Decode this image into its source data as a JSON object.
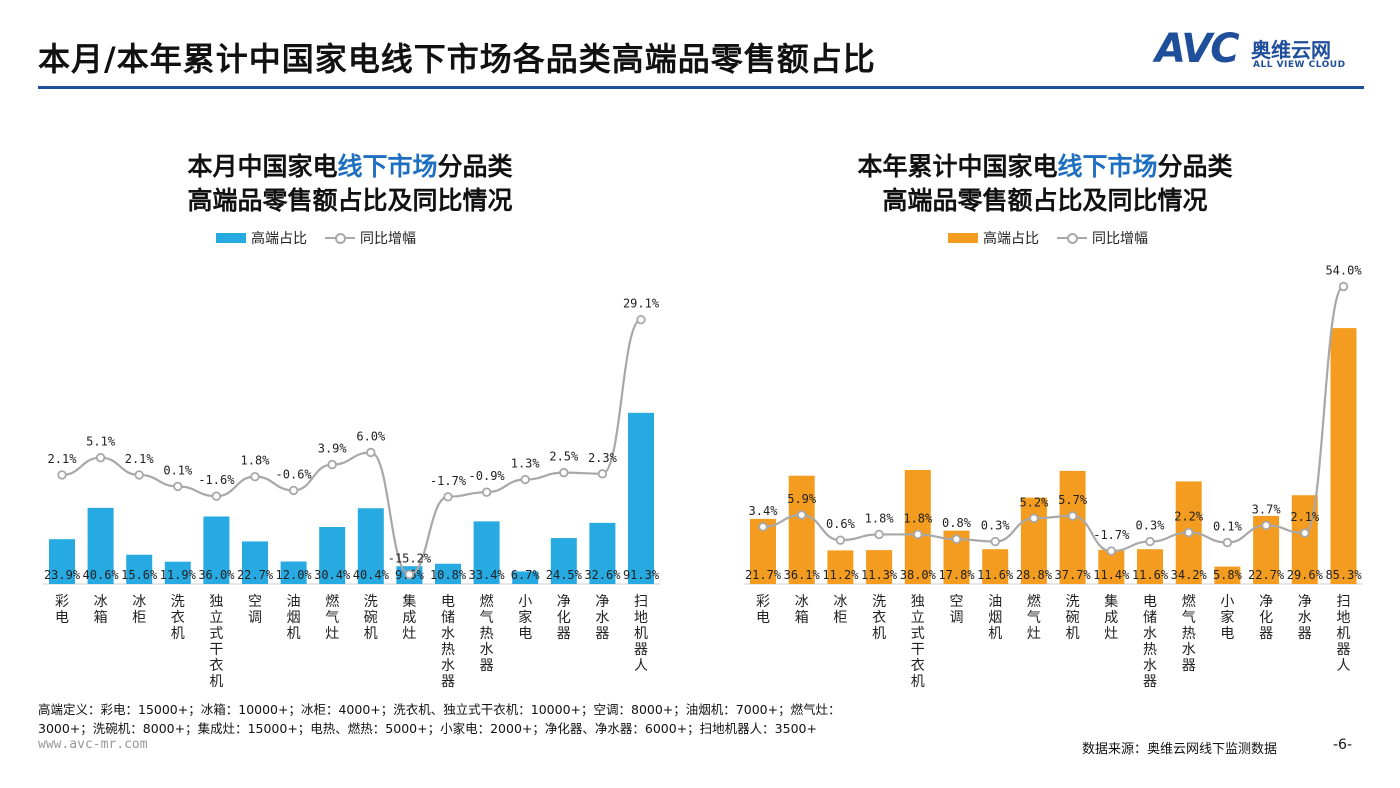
{
  "header": {
    "title": "本月/本年累计中国家电线下市场各品类高端品零售额占比",
    "logo_word": "AVC",
    "logo_cn": "奥维云网",
    "logo_en": "ALL VIEW CLOUD"
  },
  "colors": {
    "accent": "#1f4e9a",
    "bar_left": "#27aae1",
    "bar_right": "#f39c1f",
    "line": "#a8a8a8"
  },
  "chart_data": [
    {
      "type": "bar",
      "title_line1_pre": "本月中国家电",
      "title_line1_hl": "线下市场",
      "title_line1_post": "分品类",
      "title_line2": "高端品零售额占比及同比情况",
      "legend_bar": "高端占比",
      "legend_line": "同比增幅",
      "categories": [
        "彩电",
        "冰箱",
        "冰柜",
        "洗衣机",
        "独立式干衣机",
        "空调",
        "油烟机",
        "燃气灶",
        "洗碗机",
        "集成灶",
        "电储水热水器",
        "燃气热水器",
        "小家电",
        "净化器",
        "净水器",
        "扫地机器人"
      ],
      "series": [
        {
          "name": "高端占比",
          "kind": "bar",
          "values": [
            23.9,
            40.6,
            15.6,
            11.9,
            36.0,
            22.7,
            12.0,
            30.4,
            40.4,
            9.5,
            10.8,
            33.4,
            6.7,
            24.5,
            32.6,
            91.3
          ],
          "labels": [
            "23.9%",
            "40.6%",
            "15.6%",
            "11.9%",
            "36.0%",
            "22.7%",
            "12.0%",
            "30.4%",
            "40.4%",
            "9.5%",
            "10.8%",
            "33.4%",
            "6.7%",
            "24.5%",
            "32.6%",
            "91.3%"
          ]
        },
        {
          "name": "同比增幅",
          "kind": "line",
          "values": [
            2.1,
            5.1,
            2.1,
            0.1,
            -1.6,
            1.8,
            -0.6,
            3.9,
            6.0,
            -15.2,
            -1.7,
            -0.9,
            1.3,
            2.5,
            2.3,
            29.1
          ],
          "labels": [
            "2.1%",
            "5.1%",
            "2.1%",
            "0.1%",
            "-1.6%",
            "1.8%",
            "-0.6%",
            "3.9%",
            "6.0%",
            "-15.2%",
            "-1.7%",
            "-0.9%",
            "1.3%",
            "2.5%",
            "2.3%",
            "29.1%"
          ]
        }
      ]
    },
    {
      "type": "bar",
      "title_line1_pre": "本年累计中国家电",
      "title_line1_hl": "线下市场",
      "title_line1_post": "分品类",
      "title_line2": "高端品零售额占比及同比情况",
      "legend_bar": "高端占比",
      "legend_line": "同比增幅",
      "categories": [
        "彩电",
        "冰箱",
        "冰柜",
        "洗衣机",
        "独立式干衣机",
        "空调",
        "油烟机",
        "燃气灶",
        "洗碗机",
        "集成灶",
        "电储水热水器",
        "燃气热水器",
        "小家电",
        "净化器",
        "净水器",
        "扫地机器人"
      ],
      "series": [
        {
          "name": "高端占比",
          "kind": "bar",
          "values": [
            21.7,
            36.1,
            11.2,
            11.3,
            38.0,
            17.8,
            11.6,
            28.8,
            37.7,
            11.4,
            11.6,
            34.2,
            5.8,
            22.7,
            29.6,
            85.3
          ],
          "labels": [
            "21.7%",
            "36.1%",
            "11.2%",
            "11.3%",
            "38.0%",
            "17.8%",
            "11.6%",
            "28.8%",
            "37.7%",
            "11.4%",
            "11.6%",
            "34.2%",
            "5.8%",
            "22.7%",
            "29.6%",
            "85.3%"
          ]
        },
        {
          "name": "同比增幅",
          "kind": "line",
          "values": [
            3.4,
            5.9,
            0.6,
            1.8,
            1.8,
            0.8,
            0.3,
            5.2,
            5.7,
            -1.7,
            0.3,
            2.2,
            0.1,
            3.7,
            2.1,
            54.0
          ],
          "labels": [
            "3.4%",
            "5.9%",
            "0.6%",
            "1.8%",
            "1.8%",
            "0.8%",
            "0.3%",
            "5.2%",
            "5.7%",
            "-1.7%",
            "0.3%",
            "2.2%",
            "0.1%",
            "3.7%",
            "2.1%",
            "54.0%"
          ]
        }
      ]
    }
  ],
  "footer": {
    "definition_line1": "高端定义：彩电：15000+；冰箱：10000+；冰柜：4000+；洗衣机、独立式干衣机：10000+；空调：8000+；油烟机：7000+；燃气灶：",
    "definition_line2": "3000+；洗碗机：8000+；集成灶：15000+；电热、燃热：5000+；小家电：2000+；净化器、净水器：6000+；扫地机器人：3500+",
    "site": "www.avc-mr.com",
    "source": "数据来源：奥维云网线下监测数据",
    "page": "-6-"
  }
}
